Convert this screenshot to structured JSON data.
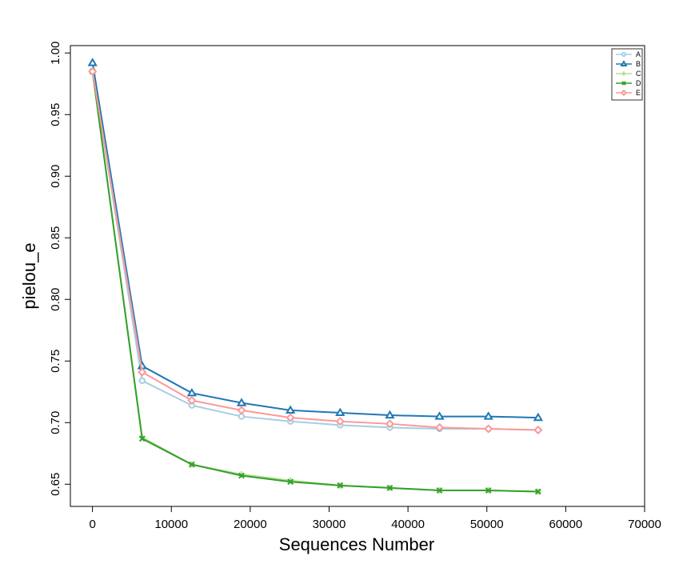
{
  "chart_data": {
    "type": "line",
    "title": "",
    "xlabel": "Sequences Number",
    "ylabel": "pielou_e",
    "xlim": [
      -2800,
      70000
    ],
    "ylim": [
      0.632,
      1.006
    ],
    "x_ticks": [
      0,
      10000,
      20000,
      30000,
      40000,
      50000,
      60000,
      70000
    ],
    "x_tick_labels": [
      "0",
      "10000",
      "20000",
      "30000",
      "40000",
      "50000",
      "60000",
      "70000"
    ],
    "y_ticks": [
      0.65,
      0.7,
      0.75,
      0.8,
      0.85,
      0.9,
      0.95,
      1.0
    ],
    "y_tick_labels": [
      "0.65",
      "0.70",
      "0.75",
      "0.80",
      "0.85",
      "0.90",
      "0.95",
      "1.00"
    ],
    "grid": false,
    "legend_position": "top-right",
    "x": [
      10,
      6300,
      12600,
      18900,
      25100,
      31400,
      37700,
      44000,
      50200,
      56500
    ],
    "series": [
      {
        "name": "A",
        "color": "#a6cee3",
        "marker": "circle",
        "values": [
          0.985,
          0.734,
          0.714,
          0.705,
          0.701,
          0.698,
          0.696,
          0.695,
          0.695,
          0.694
        ]
      },
      {
        "name": "B",
        "color": "#1f78b4",
        "marker": "triangle",
        "values": [
          0.992,
          0.746,
          0.724,
          0.716,
          0.71,
          0.708,
          0.706,
          0.705,
          0.705,
          0.704
        ]
      },
      {
        "name": "C",
        "color": "#b2df8a",
        "marker": "plus",
        "values": [
          0.985,
          0.688,
          0.666,
          0.658,
          0.653,
          0.649,
          0.647,
          0.645,
          0.645,
          0.644
        ]
      },
      {
        "name": "D",
        "color": "#33a02c",
        "marker": "cross",
        "values": [
          0.985,
          0.687,
          0.666,
          0.657,
          0.652,
          0.649,
          0.647,
          0.645,
          0.645,
          0.644
        ]
      },
      {
        "name": "E",
        "color": "#fb9a99",
        "marker": "diamond",
        "values": [
          0.985,
          0.741,
          0.718,
          0.71,
          0.704,
          0.701,
          0.699,
          0.696,
          0.695,
          0.694
        ]
      }
    ]
  }
}
